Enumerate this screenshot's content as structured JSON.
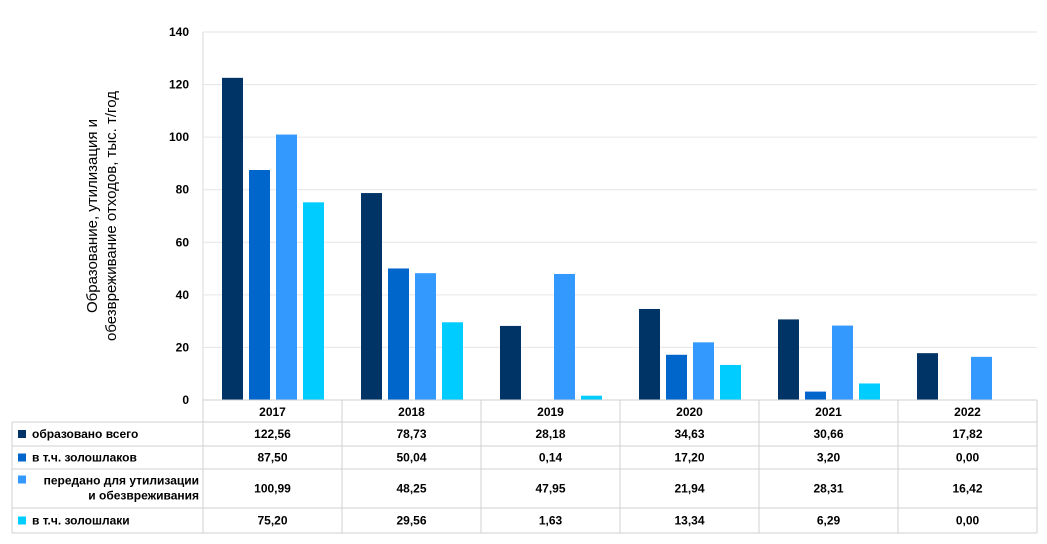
{
  "chart_data": {
    "type": "bar",
    "ylabel_lines": [
      "Образование, утилизация и",
      "обезвреживание отходов, тыс. т/год"
    ],
    "ylim": [
      0,
      140
    ],
    "yticks": [
      0,
      20,
      40,
      60,
      80,
      100,
      120,
      140
    ],
    "grid": true,
    "legend": "table-left",
    "categories": [
      "2017",
      "2018",
      "2019",
      "2020",
      "2021",
      "2022"
    ],
    "series": [
      {
        "name_lines": [
          "образовано всего"
        ],
        "color": "#003366",
        "values": [
          122.56,
          78.73,
          28.18,
          34.63,
          30.66,
          17.82
        ],
        "labels": [
          "122,56",
          "78,73",
          "28,18",
          "34,63",
          "30,66",
          "17,82"
        ]
      },
      {
        "name_lines": [
          "в т.ч. золошлаков"
        ],
        "color": "#0066CC",
        "values": [
          87.5,
          50.04,
          0.14,
          17.2,
          3.2,
          0.0
        ],
        "labels": [
          "87,50",
          "50,04",
          "0,14",
          "17,20",
          "3,20",
          "0,00"
        ]
      },
      {
        "name_lines": [
          "передано для утилизации",
          "и обезвреживания"
        ],
        "color": "#3399FF",
        "values": [
          100.99,
          48.25,
          47.95,
          21.94,
          28.31,
          16.42
        ],
        "labels": [
          "100,99",
          "48,25",
          "47,95",
          "21,94",
          "28,31",
          "16,42"
        ]
      },
      {
        "name_lines": [
          "в т.ч. золошлаки"
        ],
        "color": "#00CCFF",
        "values": [
          75.2,
          29.56,
          1.63,
          13.34,
          6.29,
          0.0
        ],
        "labels": [
          "75,20",
          "29,56",
          "1,63",
          "13,34",
          "6,29",
          "0,00"
        ]
      }
    ]
  }
}
